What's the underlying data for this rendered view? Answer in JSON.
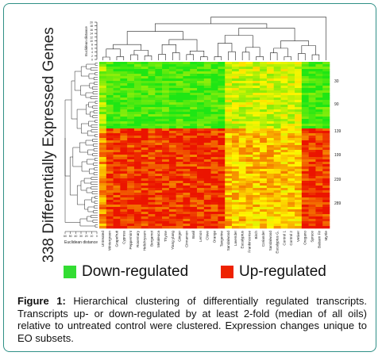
{
  "figure": {
    "y_title": "338 Differentially Expressed Genes",
    "top_dendro_label": "Euclidean distance",
    "left_dendro_label": "Euclidean distance",
    "top_scale_ticks": [
      "20",
      "18",
      "16",
      "14",
      "12",
      "10",
      "8",
      "6",
      "4",
      "2",
      "0"
    ],
    "left_scale_ticks": [
      "60",
      "50",
      "40",
      "30",
      "20",
      "10",
      "0"
    ],
    "row_labels": [
      "30",
      "90",
      "139",
      "199",
      "239",
      "289"
    ],
    "column_labels": [
      "Untreated",
      "Wintergreen",
      "Grapefruit",
      "Cypress",
      "Peppermint",
      "Rosemary",
      "Helichrysum",
      "Bergamot",
      "Melaleuca",
      "Thyme",
      "Ylang ylang",
      "Ginger",
      "Cinnamon",
      "Basil",
      "Lemon",
      "Clove",
      "Orange",
      "Tangerine",
      "Sandalwood",
      "Lavender",
      "Eucalyptus",
      "Frankincense",
      "Birch",
      "Coriander",
      "Sandalwood",
      "Eucalyptus G.",
      "Control 1",
      "Control 2",
      "Vetiver",
      "Oregano",
      "Spruce",
      "Balsam Fir",
      "Myrtle"
    ],
    "colors": {
      "down": "#22ee22",
      "up": "#ee2200",
      "mid": "#ffff00"
    }
  },
  "legend": [
    {
      "label": "Down-regulated",
      "color": "#33dd33"
    },
    {
      "label": "Up-regulated",
      "color": "#ee2200"
    }
  ],
  "caption": {
    "label": "Figure 1:",
    "text": " Hierarchical clustering of differentially regulated transcripts. Transcripts up- or down-regulated by at least 2-fold (median of all oils) relative to untreated control were clustered. Expression changes unique to EO subsets."
  }
}
